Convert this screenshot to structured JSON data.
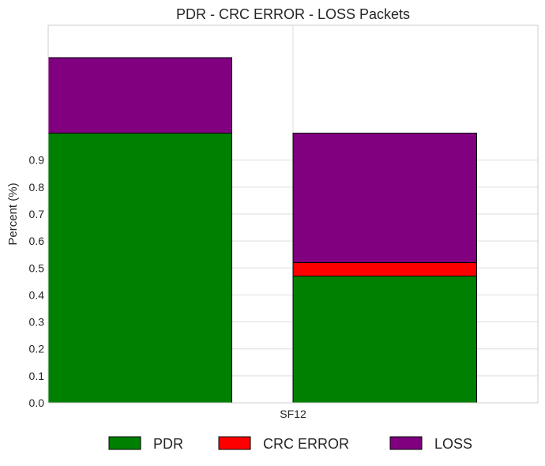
{
  "chart_data": {
    "type": "bar",
    "stacked": true,
    "title": "PDR - CRC ERROR - LOSS Packets",
    "xlabel": "",
    "ylabel": "Percent (%)",
    "ylim": [
      0,
      1.4
    ],
    "yticks": [
      "0.0",
      "0.1",
      "0.2",
      "0.3",
      "0.4",
      "0.5",
      "0.6",
      "0.7",
      "0.8",
      "0.9"
    ],
    "xtick_label": "SF12",
    "bars": [
      {
        "stack": [
          {
            "series": "PDR",
            "value": 1.0
          },
          {
            "series": "CRC ERROR",
            "value": 0.0
          },
          {
            "series": "LOSS",
            "value": 0.28
          }
        ]
      },
      {
        "stack": [
          {
            "series": "PDR",
            "value": 0.47
          },
          {
            "series": "CRC ERROR",
            "value": 0.05
          },
          {
            "series": "LOSS",
            "value": 0.48
          }
        ]
      }
    ],
    "series": [
      {
        "name": "PDR",
        "color": "#008000"
      },
      {
        "name": "CRC ERROR",
        "color": "#ff0000"
      },
      {
        "name": "LOSS",
        "color": "#800080"
      }
    ],
    "grid": true,
    "legend_position": "bottom"
  }
}
